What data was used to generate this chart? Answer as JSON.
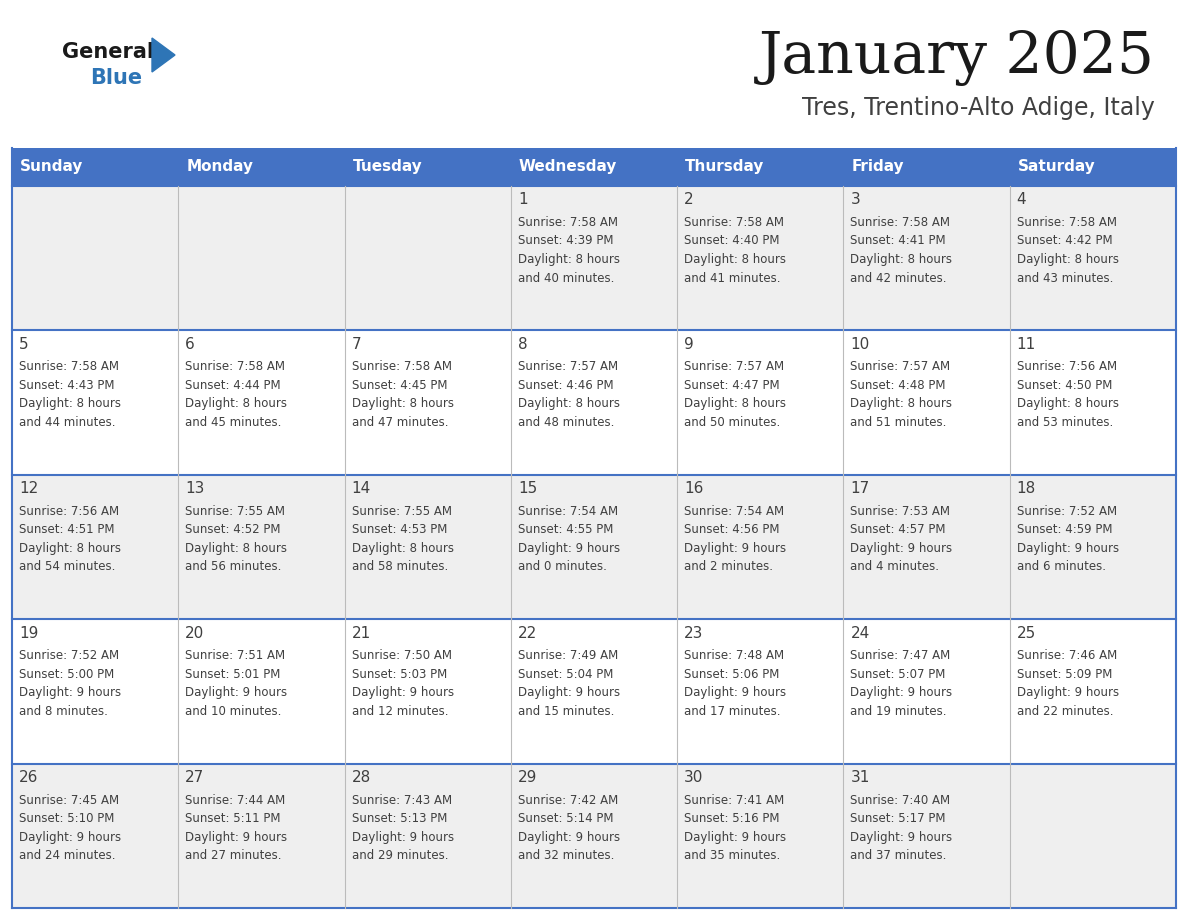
{
  "title": "January 2025",
  "subtitle": "Tres, Trentino-Alto Adige, Italy",
  "header_color": "#4472C4",
  "header_text_color": "#FFFFFF",
  "bg_color": "#FFFFFF",
  "cell_bg_white": "#FFFFFF",
  "cell_bg_gray": "#EFEFEF",
  "day_names": [
    "Sunday",
    "Monday",
    "Tuesday",
    "Wednesday",
    "Thursday",
    "Friday",
    "Saturday"
  ],
  "separator_color": "#4472C4",
  "text_color": "#404040",
  "number_color": "#404040",
  "calendar_data": [
    [
      {
        "day": 0,
        "info": ""
      },
      {
        "day": 0,
        "info": ""
      },
      {
        "day": 0,
        "info": ""
      },
      {
        "day": 1,
        "info": "Sunrise: 7:58 AM\nSunset: 4:39 PM\nDaylight: 8 hours\nand 40 minutes."
      },
      {
        "day": 2,
        "info": "Sunrise: 7:58 AM\nSunset: 4:40 PM\nDaylight: 8 hours\nand 41 minutes."
      },
      {
        "day": 3,
        "info": "Sunrise: 7:58 AM\nSunset: 4:41 PM\nDaylight: 8 hours\nand 42 minutes."
      },
      {
        "day": 4,
        "info": "Sunrise: 7:58 AM\nSunset: 4:42 PM\nDaylight: 8 hours\nand 43 minutes."
      }
    ],
    [
      {
        "day": 5,
        "info": "Sunrise: 7:58 AM\nSunset: 4:43 PM\nDaylight: 8 hours\nand 44 minutes."
      },
      {
        "day": 6,
        "info": "Sunrise: 7:58 AM\nSunset: 4:44 PM\nDaylight: 8 hours\nand 45 minutes."
      },
      {
        "day": 7,
        "info": "Sunrise: 7:58 AM\nSunset: 4:45 PM\nDaylight: 8 hours\nand 47 minutes."
      },
      {
        "day": 8,
        "info": "Sunrise: 7:57 AM\nSunset: 4:46 PM\nDaylight: 8 hours\nand 48 minutes."
      },
      {
        "day": 9,
        "info": "Sunrise: 7:57 AM\nSunset: 4:47 PM\nDaylight: 8 hours\nand 50 minutes."
      },
      {
        "day": 10,
        "info": "Sunrise: 7:57 AM\nSunset: 4:48 PM\nDaylight: 8 hours\nand 51 minutes."
      },
      {
        "day": 11,
        "info": "Sunrise: 7:56 AM\nSunset: 4:50 PM\nDaylight: 8 hours\nand 53 minutes."
      }
    ],
    [
      {
        "day": 12,
        "info": "Sunrise: 7:56 AM\nSunset: 4:51 PM\nDaylight: 8 hours\nand 54 minutes."
      },
      {
        "day": 13,
        "info": "Sunrise: 7:55 AM\nSunset: 4:52 PM\nDaylight: 8 hours\nand 56 minutes."
      },
      {
        "day": 14,
        "info": "Sunrise: 7:55 AM\nSunset: 4:53 PM\nDaylight: 8 hours\nand 58 minutes."
      },
      {
        "day": 15,
        "info": "Sunrise: 7:54 AM\nSunset: 4:55 PM\nDaylight: 9 hours\nand 0 minutes."
      },
      {
        "day": 16,
        "info": "Sunrise: 7:54 AM\nSunset: 4:56 PM\nDaylight: 9 hours\nand 2 minutes."
      },
      {
        "day": 17,
        "info": "Sunrise: 7:53 AM\nSunset: 4:57 PM\nDaylight: 9 hours\nand 4 minutes."
      },
      {
        "day": 18,
        "info": "Sunrise: 7:52 AM\nSunset: 4:59 PM\nDaylight: 9 hours\nand 6 minutes."
      }
    ],
    [
      {
        "day": 19,
        "info": "Sunrise: 7:52 AM\nSunset: 5:00 PM\nDaylight: 9 hours\nand 8 minutes."
      },
      {
        "day": 20,
        "info": "Sunrise: 7:51 AM\nSunset: 5:01 PM\nDaylight: 9 hours\nand 10 minutes."
      },
      {
        "day": 21,
        "info": "Sunrise: 7:50 AM\nSunset: 5:03 PM\nDaylight: 9 hours\nand 12 minutes."
      },
      {
        "day": 22,
        "info": "Sunrise: 7:49 AM\nSunset: 5:04 PM\nDaylight: 9 hours\nand 15 minutes."
      },
      {
        "day": 23,
        "info": "Sunrise: 7:48 AM\nSunset: 5:06 PM\nDaylight: 9 hours\nand 17 minutes."
      },
      {
        "day": 24,
        "info": "Sunrise: 7:47 AM\nSunset: 5:07 PM\nDaylight: 9 hours\nand 19 minutes."
      },
      {
        "day": 25,
        "info": "Sunrise: 7:46 AM\nSunset: 5:09 PM\nDaylight: 9 hours\nand 22 minutes."
      }
    ],
    [
      {
        "day": 26,
        "info": "Sunrise: 7:45 AM\nSunset: 5:10 PM\nDaylight: 9 hours\nand 24 minutes."
      },
      {
        "day": 27,
        "info": "Sunrise: 7:44 AM\nSunset: 5:11 PM\nDaylight: 9 hours\nand 27 minutes."
      },
      {
        "day": 28,
        "info": "Sunrise: 7:43 AM\nSunset: 5:13 PM\nDaylight: 9 hours\nand 29 minutes."
      },
      {
        "day": 29,
        "info": "Sunrise: 7:42 AM\nSunset: 5:14 PM\nDaylight: 9 hours\nand 32 minutes."
      },
      {
        "day": 30,
        "info": "Sunrise: 7:41 AM\nSunset: 5:16 PM\nDaylight: 9 hours\nand 35 minutes."
      },
      {
        "day": 31,
        "info": "Sunrise: 7:40 AM\nSunset: 5:17 PM\nDaylight: 9 hours\nand 37 minutes."
      },
      {
        "day": 0,
        "info": ""
      }
    ]
  ]
}
